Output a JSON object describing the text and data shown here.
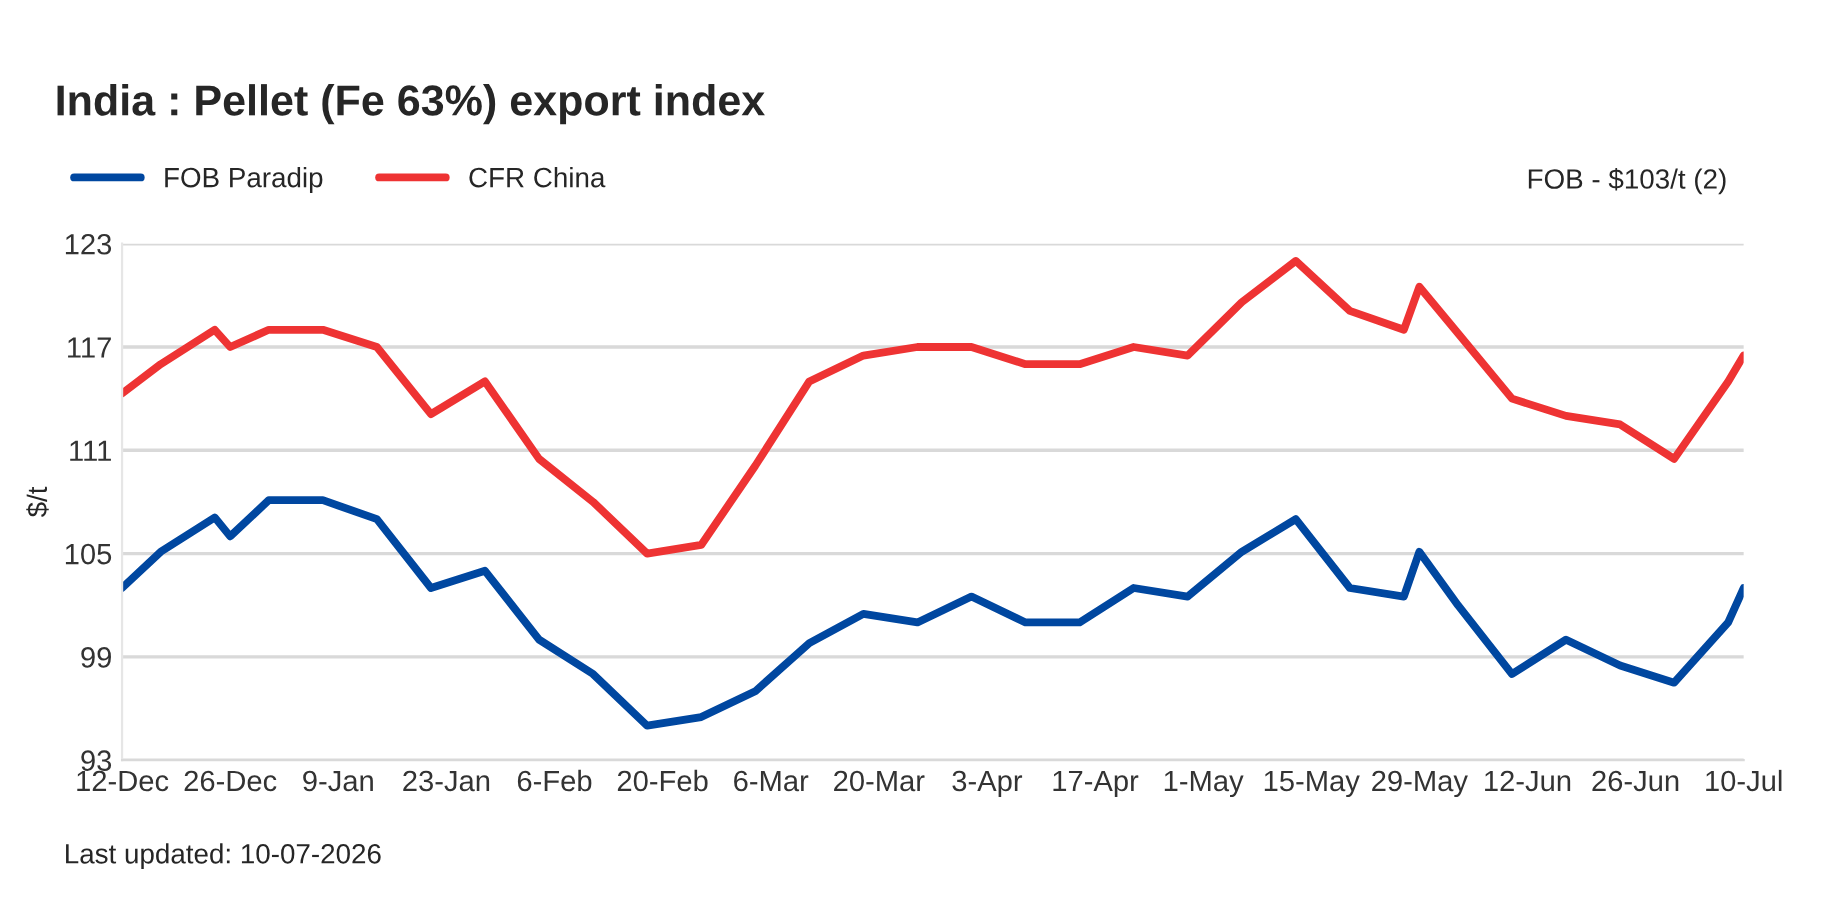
{
  "chart_data": {
    "type": "line",
    "title": "India : Pellet (Fe 63%) export index",
    "ylabel": "$/t",
    "annotations": [
      "FOB - $103/t (2)",
      "Last updated: 10-07-2026"
    ],
    "x": [
      "2025-12-12",
      "2025-12-17",
      "2025-12-24",
      "2025-12-26",
      "2025-12-31",
      "2026-01-07",
      "2026-01-14",
      "2026-01-21",
      "2026-01-28",
      "2026-02-04",
      "2026-02-11",
      "2026-02-18",
      "2026-02-25",
      "2026-03-04",
      "2026-03-11",
      "2026-03-18",
      "2026-03-25",
      "2026-04-01",
      "2026-04-08",
      "2026-04-15",
      "2026-04-22",
      "2026-04-29",
      "2026-05-06",
      "2026-05-13",
      "2026-05-20",
      "2026-05-27",
      "2026-05-29",
      "2026-06-03",
      "2026-06-10",
      "2026-06-17",
      "2026-06-24",
      "2026-07-01",
      "2026-07-08",
      "2026-07-10"
    ],
    "series": [
      {
        "name": "FOB Paradip",
        "color": "#0047a0",
        "values": [
          103.0,
          105.1,
          107.1,
          106.0,
          108.1,
          108.1,
          107.0,
          103.0,
          104.0,
          100.0,
          98.0,
          95.0,
          95.5,
          97.0,
          99.8,
          101.5,
          101.0,
          102.5,
          101.0,
          101.0,
          103.0,
          102.5,
          105.1,
          107.0,
          103.0,
          102.5,
          105.1,
          102.0,
          98.0,
          100.0,
          98.5,
          97.5,
          101.0,
          103.0
        ]
      },
      {
        "name": "CFR China",
        "color": "#ee3333",
        "values": [
          114.3,
          116.0,
          118.0,
          117.0,
          118.0,
          118.0,
          117.0,
          113.1,
          115.0,
          110.5,
          108.0,
          105.0,
          105.5,
          110.1,
          115.0,
          116.5,
          117.0,
          117.0,
          116.0,
          116.0,
          117.0,
          116.5,
          119.6,
          122.0,
          119.1,
          118.0,
          120.5,
          117.8,
          114.0,
          113.0,
          112.5,
          110.5,
          115.0,
          116.5
        ]
      }
    ],
    "xlim": [
      "2025-12-12",
      "2026-07-10"
    ],
    "xticks": [
      {
        "value": "2025-12-12",
        "label": "12-Dec"
      },
      {
        "value": "2025-12-26",
        "label": "26-Dec"
      },
      {
        "value": "2026-01-09",
        "label": "9-Jan"
      },
      {
        "value": "2026-01-23",
        "label": "23-Jan"
      },
      {
        "value": "2026-02-06",
        "label": "6-Feb"
      },
      {
        "value": "2026-02-20",
        "label": "20-Feb"
      },
      {
        "value": "2026-03-06",
        "label": "6-Mar"
      },
      {
        "value": "2026-03-20",
        "label": "20-Mar"
      },
      {
        "value": "2026-04-03",
        "label": "3-Apr"
      },
      {
        "value": "2026-04-17",
        "label": "17-Apr"
      },
      {
        "value": "2026-05-01",
        "label": "1-May"
      },
      {
        "value": "2026-05-15",
        "label": "15-May"
      },
      {
        "value": "2026-05-29",
        "label": "29-May"
      },
      {
        "value": "2026-06-12",
        "label": "12-Jun"
      },
      {
        "value": "2026-06-26",
        "label": "26-Jun"
      },
      {
        "value": "2026-07-10",
        "label": "10-Jul"
      }
    ],
    "ylim": [
      93,
      123
    ],
    "yticks": [
      93,
      99,
      105,
      111,
      117,
      123
    ],
    "grid": "y",
    "legend": "top left",
    "marker": "none",
    "line_style": "solid"
  }
}
